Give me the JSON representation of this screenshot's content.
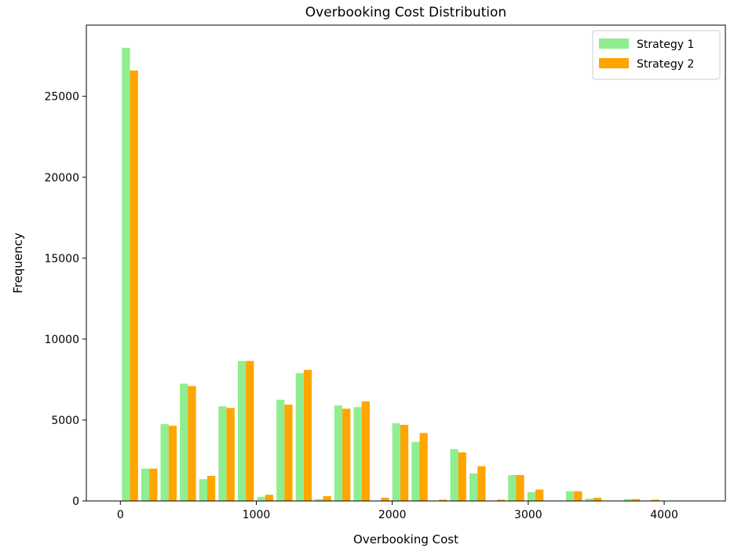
{
  "chart_data": {
    "type": "bar",
    "title": "Overbooking Cost Distribution",
    "xlabel": "Overbooking Cost",
    "ylabel": "Frequency",
    "xlim": [
      -250,
      4450
    ],
    "ylim": [
      0,
      29400
    ],
    "xticks": [
      0,
      1000,
      2000,
      3000,
      4000
    ],
    "yticks": [
      0,
      5000,
      10000,
      15000,
      20000,
      25000
    ],
    "legend_position": "top-right",
    "grid": false,
    "bin_width": 142,
    "bin_starts": [
      0,
      142,
      284,
      426,
      568,
      710,
      852,
      994,
      1136,
      1278,
      1420,
      1562,
      1704,
      1846,
      1988,
      2130,
      2272,
      2414,
      2556,
      2698,
      2840,
      2982,
      3124,
      3266,
      3408,
      3550,
      3692,
      3834,
      3976,
      4118
    ],
    "series": [
      {
        "name": "Strategy 1",
        "color": "#90ee90",
        "values": [
          28000,
          2000,
          4750,
          7250,
          1350,
          5850,
          8650,
          250,
          6250,
          7900,
          120,
          5900,
          5800,
          20,
          4800,
          3650,
          20,
          3200,
          1700,
          20,
          1600,
          550,
          0,
          600,
          150,
          0,
          120,
          20,
          0,
          0
        ]
      },
      {
        "name": "Strategy 2",
        "color": "#ffa500",
        "values": [
          26600,
          2000,
          4650,
          7100,
          1550,
          5750,
          8650,
          380,
          5950,
          8100,
          300,
          5700,
          6150,
          200,
          4700,
          4200,
          80,
          3000,
          2150,
          80,
          1600,
          700,
          0,
          600,
          200,
          0,
          120,
          80,
          0,
          0
        ]
      }
    ]
  }
}
